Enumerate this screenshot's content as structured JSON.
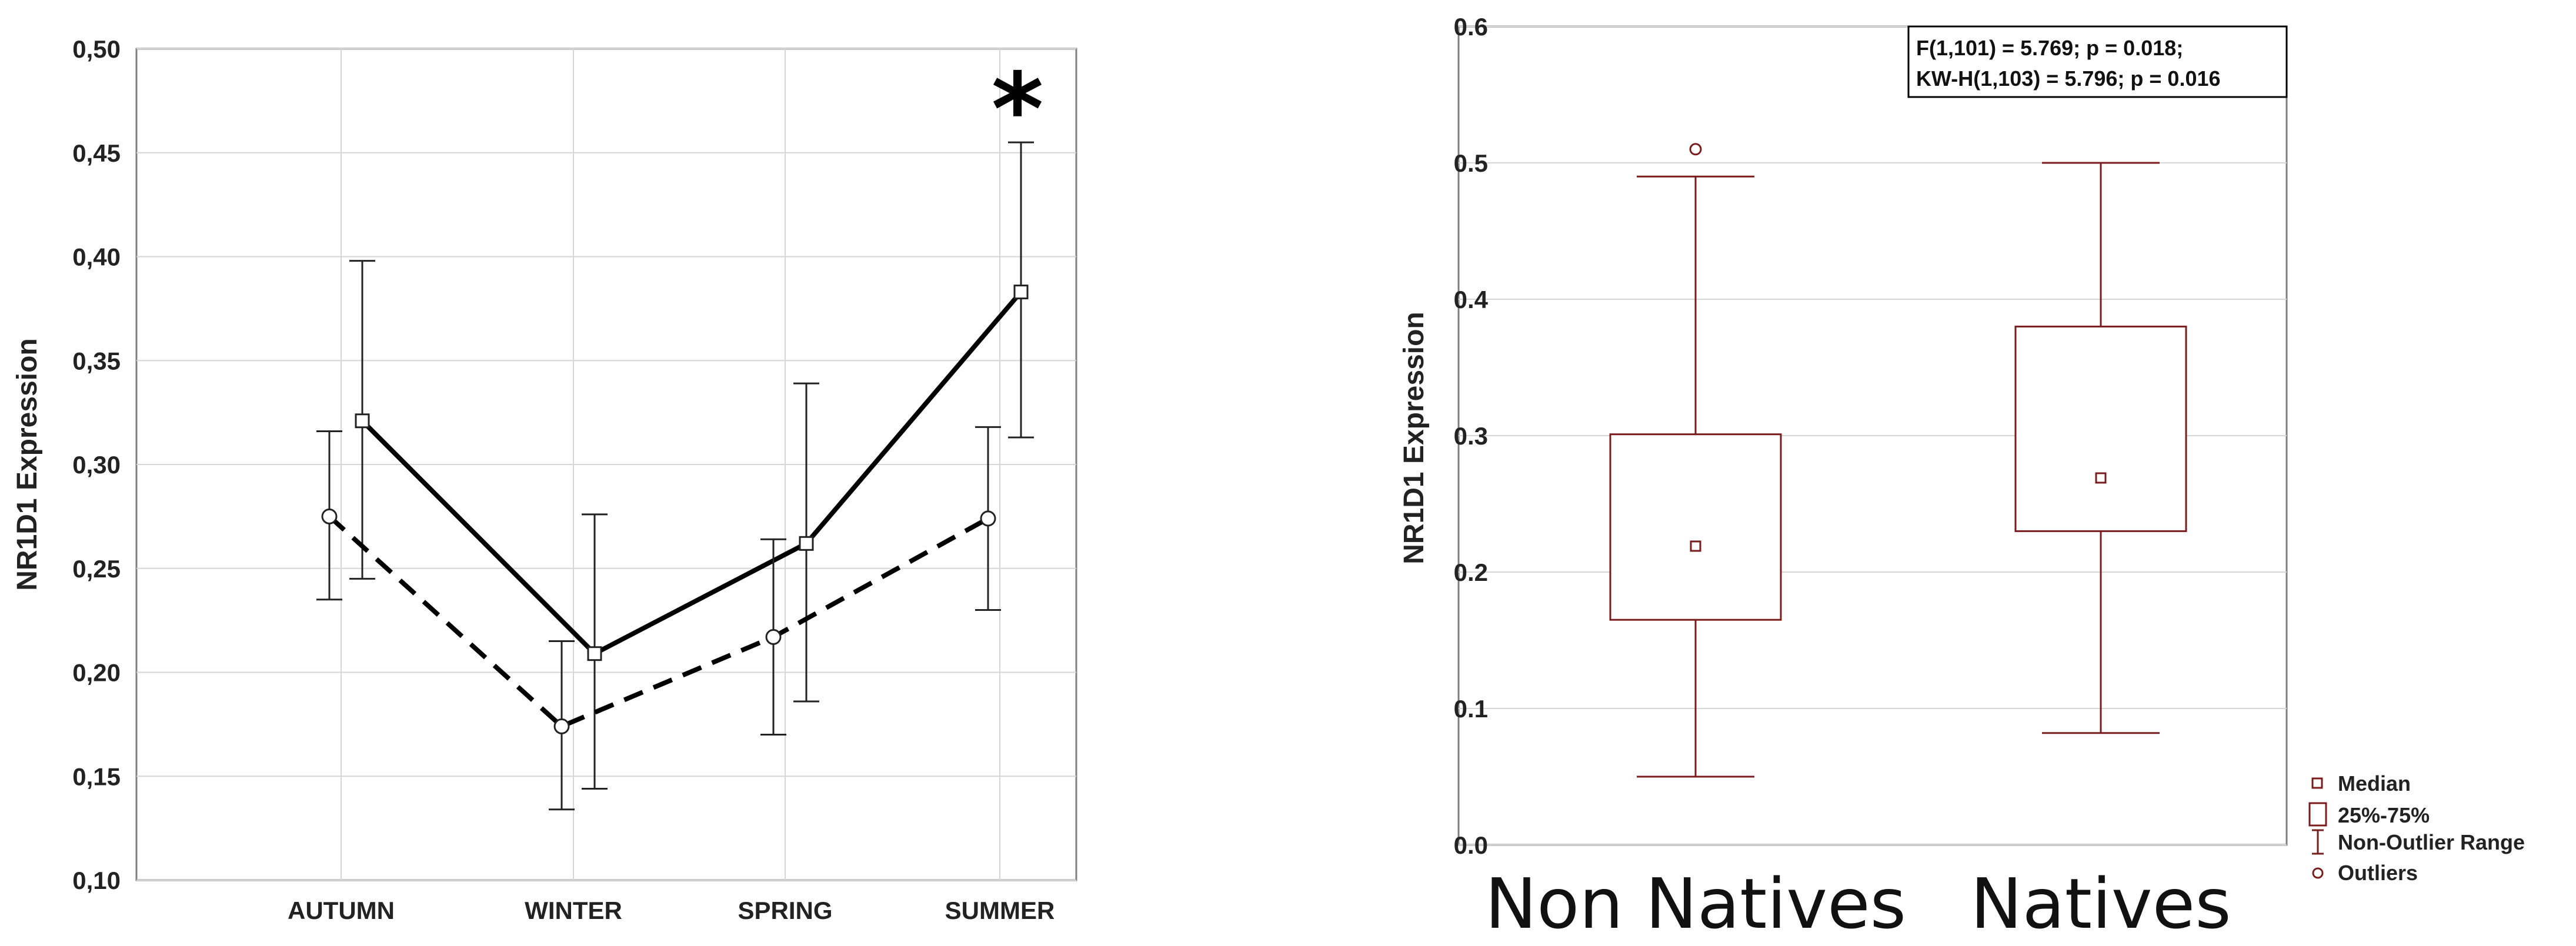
{
  "chart_data": [
    {
      "type": "line",
      "ylabel": "NR1D1 Expression",
      "ylim": [
        0.1,
        0.5
      ],
      "yticks": [
        "0,10",
        "0,15",
        "0,20",
        "0,25",
        "0,30",
        "0,35",
        "0,40",
        "0,45",
        "0,50"
      ],
      "categories": [
        "AUTUMN",
        "WINTER",
        "SPRING",
        "SUMMER"
      ],
      "grid": true,
      "annotation": "*",
      "annotation_category": "SUMMER",
      "series": [
        {
          "style": "solid",
          "marker": "square",
          "values": [
            0.321,
            0.209,
            0.262,
            0.383
          ],
          "error_low": [
            0.245,
            0.144,
            0.186,
            0.313
          ],
          "error_high": [
            0.398,
            0.276,
            0.339,
            0.455
          ]
        },
        {
          "style": "dashed",
          "marker": "circle",
          "values": [
            0.275,
            0.174,
            0.217,
            0.274
          ],
          "error_low": [
            0.235,
            0.134,
            0.17,
            0.23
          ],
          "error_high": [
            0.316,
            0.215,
            0.264,
            0.318
          ]
        }
      ]
    },
    {
      "type": "box",
      "ylabel": "NR1D1 Expression",
      "ylim": [
        0.0,
        0.6
      ],
      "yticks": [
        "0.0",
        "0.1",
        "0.2",
        "0.3",
        "0.4",
        "0.5",
        "0.6"
      ],
      "categories": [
        "Non Natives",
        "Natives"
      ],
      "grid": true,
      "color": "#7b1c1c",
      "boxes": [
        {
          "whisker_low": 0.05,
          "q1": 0.165,
          "median": 0.219,
          "q3": 0.301,
          "whisker_high": 0.49,
          "outliers": [
            0.51
          ]
        },
        {
          "whisker_low": 0.082,
          "q1": 0.23,
          "median": 0.269,
          "q3": 0.38,
          "whisker_high": 0.5,
          "outliers": []
        }
      ],
      "stats": [
        "F(1,101) = 5.769; p = 0.018;",
        "KW-H(1,103) = 5.796; p = 0.016"
      ],
      "legend": {
        "placement": "bottom-right",
        "items": [
          "Median",
          "25%-75%",
          "Non-Outlier Range",
          "Outliers"
        ]
      }
    }
  ]
}
